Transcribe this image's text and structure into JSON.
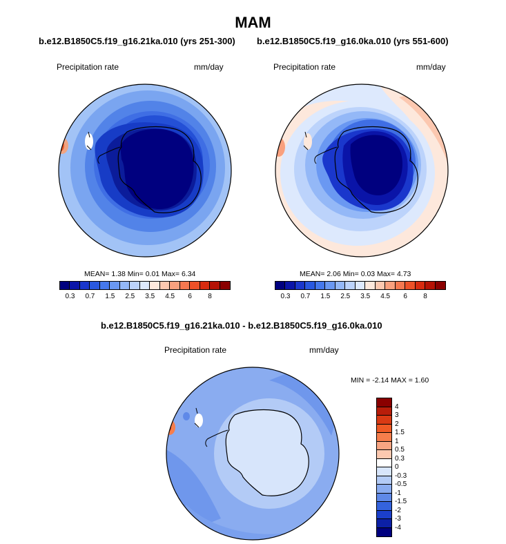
{
  "title": "MAM",
  "panels": {
    "left": {
      "case_title": "b.e12.B1850C5.f19_g16.21ka.010 (yrs 251-300)",
      "variable": "Precipitation rate",
      "units": "mm/day",
      "stats": "MEAN=   1.38  Min=   0.01  Max=   6.34"
    },
    "right": {
      "case_title": "b.e12.B1850C5.f19_g16.0ka.010 (yrs 551-600)",
      "variable": "Precipitation rate",
      "units": "mm/day",
      "stats": "MEAN=   2.06  Min=   0.03  Max=   4.73"
    },
    "diff": {
      "case_title": "b.e12.B1850C5.f19_g16.21ka.010 - b.e12.B1850C5.f19_g16.0ka.010",
      "variable": "Precipitation rate",
      "units": "mm/day",
      "stats": "MIN =  -2.14 MAX =   1.60"
    }
  },
  "horizontal_colorbar": {
    "colors": [
      "#00007f",
      "#0a14a8",
      "#1a37cc",
      "#2958e0",
      "#4578ec",
      "#6a98f2",
      "#94b8f7",
      "#bcd3fb",
      "#dde9fd",
      "#fde8dc",
      "#fcc8b0",
      "#f9a07e",
      "#f57850",
      "#ed5128",
      "#d72b10",
      "#b51205",
      "#8a0000"
    ],
    "tick_labels": [
      "0.3",
      "0.7",
      "1.5",
      "2.5",
      "3.5",
      "4.5",
      "6",
      "8"
    ]
  },
  "vertical_colorbar": {
    "colors": [
      "#8a0000",
      "#b81d0a",
      "#d93a14",
      "#ef5a25",
      "#f67e4c",
      "#f9a582",
      "#fcc9b0",
      "#ffffff",
      "#d7e5fb",
      "#b3cbf6",
      "#8aacf0",
      "#5f89e8",
      "#3463dd",
      "#1b3fcb",
      "#0c20a6",
      "#00007f"
    ],
    "tick_labels": [
      "4",
      "3",
      "2",
      "1.5",
      "1",
      "0.5",
      "0.3",
      "0",
      "-0.3",
      "-0.5",
      "-1",
      "-1.5",
      "-2",
      "-3",
      "-4"
    ]
  }
}
